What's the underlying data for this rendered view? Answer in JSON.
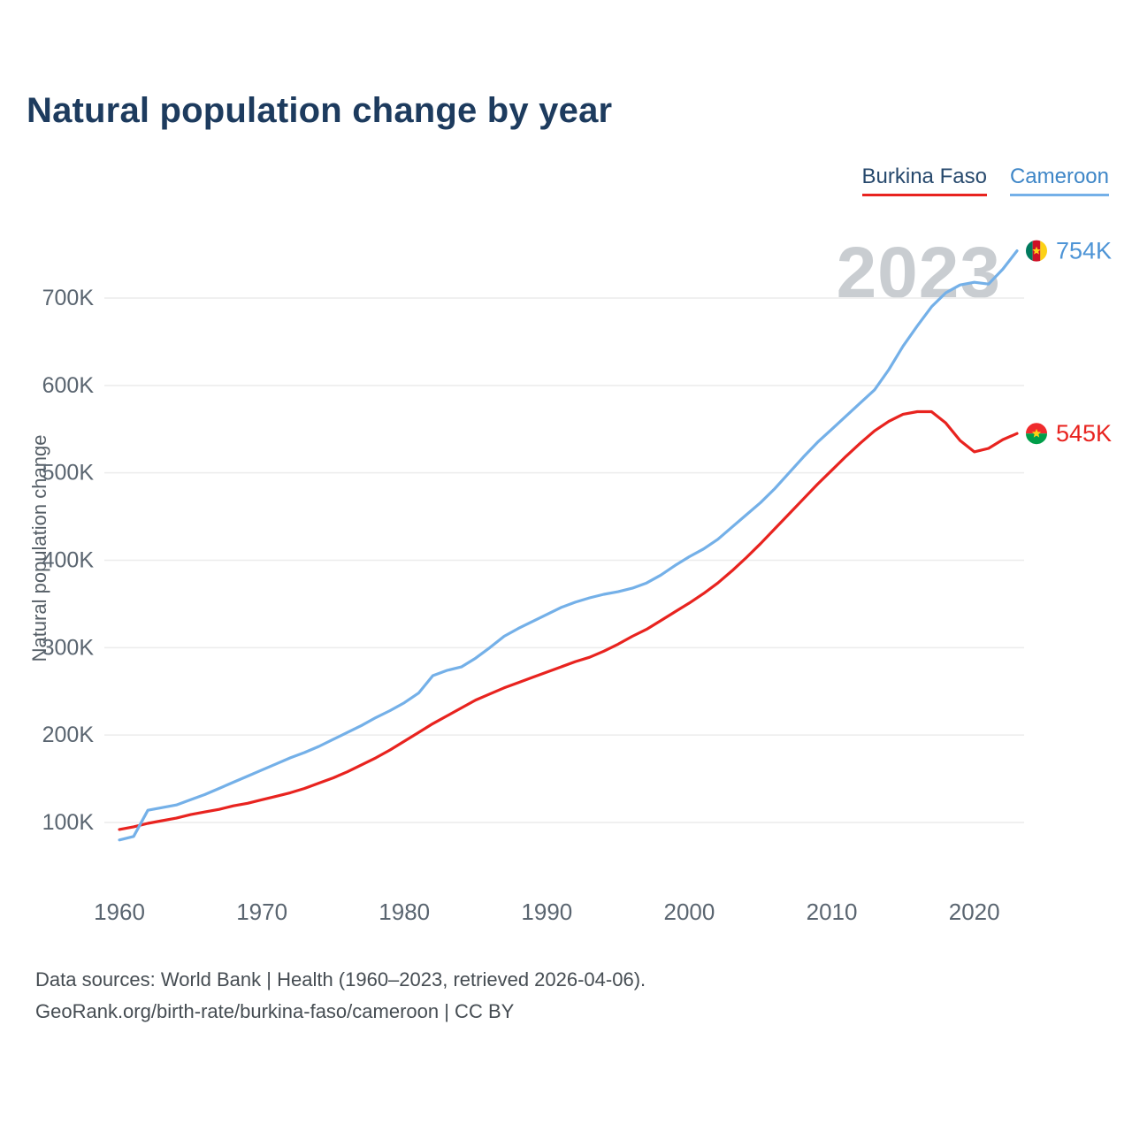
{
  "title": "Natural population change by year",
  "watermark": "2023",
  "legend": [
    {
      "label": "Burkina Faso",
      "color": "#e8231f",
      "text_color": "#27496d"
    },
    {
      "label": "Cameroon",
      "color": "#74b0e8",
      "text_color": "#3e86c7"
    }
  ],
  "end_labels": [
    {
      "series": "Cameroon",
      "value_label": "754K",
      "color": "#4d94d6",
      "flag": "cameroon"
    },
    {
      "series": "Burkina Faso",
      "value_label": "545K",
      "color": "#e8231f",
      "flag": "burkina-faso"
    }
  ],
  "footer": {
    "line1": "Data sources: World Bank | Health (1960–2023, retrieved 2026-04-06).",
    "line2": "GeoRank.org/birth-rate/burkina-faso/cameroon | CC BY"
  },
  "chart_data": {
    "type": "line",
    "title": "Natural population change by year",
    "xlabel": "",
    "ylabel": "Natural population change",
    "units": "thousands of people",
    "xlim": [
      1960,
      2023
    ],
    "ylim": [
      0,
      790
    ],
    "grid": "horizontal",
    "legend_position": "top-right",
    "x_ticks": [
      1960,
      1970,
      1980,
      1990,
      2000,
      2010,
      2020
    ],
    "y_ticks": {
      "values": [
        100,
        200,
        300,
        400,
        500,
        600,
        700
      ],
      "labels": [
        "100K",
        "200K",
        "300K",
        "400K",
        "500K",
        "600K",
        "700K"
      ]
    },
    "x": [
      1960,
      1961,
      1962,
      1963,
      1964,
      1965,
      1966,
      1967,
      1968,
      1969,
      1970,
      1971,
      1972,
      1973,
      1974,
      1975,
      1976,
      1977,
      1978,
      1979,
      1980,
      1981,
      1982,
      1983,
      1984,
      1985,
      1986,
      1987,
      1988,
      1989,
      1990,
      1991,
      1992,
      1993,
      1994,
      1995,
      1996,
      1997,
      1998,
      1999,
      2000,
      2001,
      2002,
      2003,
      2004,
      2005,
      2006,
      2007,
      2008,
      2009,
      2010,
      2011,
      2012,
      2013,
      2014,
      2015,
      2016,
      2017,
      2018,
      2019,
      2020,
      2021,
      2022,
      2023
    ],
    "series": [
      {
        "name": "Burkina Faso",
        "color": "#e8231f",
        "values": [
          92,
          95,
          99,
          102,
          105,
          109,
          112,
          115,
          119,
          122,
          126,
          130,
          134,
          139,
          145,
          151,
          158,
          166,
          174,
          183,
          193,
          203,
          213,
          222,
          231,
          240,
          247,
          254,
          260,
          266,
          272,
          278,
          284,
          289,
          296,
          304,
          313,
          321,
          331,
          341,
          351,
          362,
          374,
          388,
          403,
          419,
          436,
          453,
          470,
          487,
          503,
          519,
          534,
          548,
          559,
          567,
          570,
          570,
          557,
          537,
          524,
          528,
          538,
          545
        ]
      },
      {
        "name": "Cameroon",
        "color": "#74b0e8",
        "values": [
          80,
          84,
          114,
          117,
          120,
          126,
          132,
          139,
          146,
          153,
          160,
          167,
          174,
          180,
          187,
          195,
          203,
          211,
          220,
          228,
          237,
          248,
          268,
          274,
          278,
          288,
          300,
          313,
          322,
          330,
          338,
          346,
          352,
          357,
          361,
          364,
          368,
          374,
          383,
          394,
          404,
          413,
          424,
          438,
          452,
          466,
          482,
          500,
          518,
          535,
          550,
          565,
          580,
          595,
          618,
          645,
          668,
          690,
          706,
          715,
          718,
          716,
          733,
          754
        ]
      }
    ]
  }
}
